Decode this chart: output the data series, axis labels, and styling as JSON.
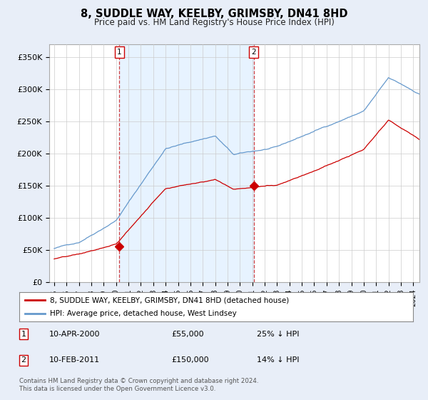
{
  "title": "8, SUDDLE WAY, KEELBY, GRIMSBY, DN41 8HD",
  "subtitle": "Price paid vs. HM Land Registry's House Price Index (HPI)",
  "ylabel_ticks": [
    "£0",
    "£50K",
    "£100K",
    "£150K",
    "£200K",
    "£250K",
    "£300K",
    "£350K"
  ],
  "ytick_values": [
    0,
    50000,
    100000,
    150000,
    200000,
    250000,
    300000,
    350000
  ],
  "ylim": [
    0,
    370000
  ],
  "xlim_start": 1994.6,
  "xlim_end": 2024.5,
  "sale1_year": 2000.27,
  "sale1_price": 55000,
  "sale1_label": "1",
  "sale1_date": "10-APR-2000",
  "sale1_pct": "25% ↓ HPI",
  "sale2_year": 2011.11,
  "sale2_price": 150000,
  "sale2_label": "2",
  "sale2_date": "10-FEB-2011",
  "sale2_pct": "14% ↓ HPI",
  "hpi_color": "#6699cc",
  "price_color": "#cc0000",
  "sale_dot_color": "#cc0000",
  "vline_color": "#cc2222",
  "shade_color": "#ddeeff",
  "background_color": "#e8eef8",
  "plot_bg_color": "#ffffff",
  "legend_label_price": "8, SUDDLE WAY, KEELBY, GRIMSBY, DN41 8HD (detached house)",
  "legend_label_hpi": "HPI: Average price, detached house, West Lindsey",
  "footer": "Contains HM Land Registry data © Crown copyright and database right 2024.\nThis data is licensed under the Open Government Licence v3.0.",
  "table_rows": [
    [
      "1",
      "10-APR-2000",
      "£55,000",
      "25% ↓ HPI"
    ],
    [
      "2",
      "10-FEB-2011",
      "£150,000",
      "14% ↓ HPI"
    ]
  ],
  "xtick_years": [
    1995,
    1996,
    1997,
    1998,
    1999,
    2000,
    2001,
    2002,
    2003,
    2004,
    2005,
    2006,
    2007,
    2008,
    2009,
    2010,
    2011,
    2012,
    2013,
    2014,
    2015,
    2016,
    2017,
    2018,
    2019,
    2020,
    2021,
    2022,
    2023,
    2024
  ]
}
